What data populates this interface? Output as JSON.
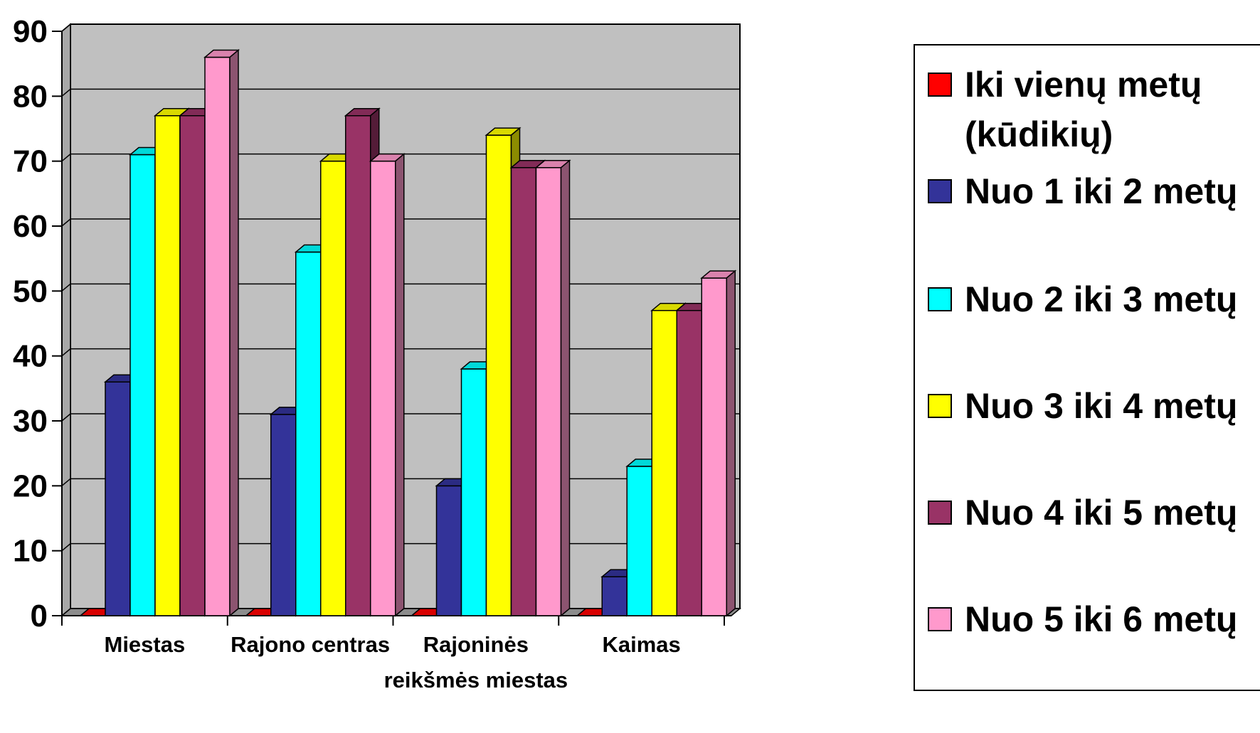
{
  "chart_data": {
    "type": "bar",
    "categories": [
      "Miestas",
      "Rajono centras",
      "Rajoninės reikšmės miestas",
      "Kaimas"
    ],
    "series": [
      {
        "name": "Iki vienų metų (kūdikių)",
        "color": "#FF0000",
        "values": [
          0,
          0,
          0,
          0
        ]
      },
      {
        "name": "Nuo 1 iki 2 metų",
        "color": "#333399",
        "values": [
          36,
          31,
          20,
          6
        ]
      },
      {
        "name": "Nuo 2 iki 3 metų",
        "color": "#00FFFF",
        "values": [
          71,
          56,
          38,
          23
        ]
      },
      {
        "name": "Nuo 3 iki 4 metų",
        "color": "#FFFF00",
        "values": [
          77,
          70,
          74,
          47
        ]
      },
      {
        "name": "Nuo 4 iki 5 metų",
        "color": "#993366",
        "values": [
          77,
          77,
          69,
          47
        ]
      },
      {
        "name": "Nuo 5 iki 6 metų",
        "color": "#FF99CC",
        "values": [
          86,
          70,
          69,
          52
        ]
      }
    ],
    "yticks": [
      "0",
      "10",
      "20",
      "30",
      "40",
      "50",
      "60",
      "70",
      "80",
      "90"
    ],
    "ylim": [
      0,
      90
    ],
    "grid": true,
    "wall_color": "#C0C0C0",
    "legend_position": "right",
    "three_d": true
  }
}
